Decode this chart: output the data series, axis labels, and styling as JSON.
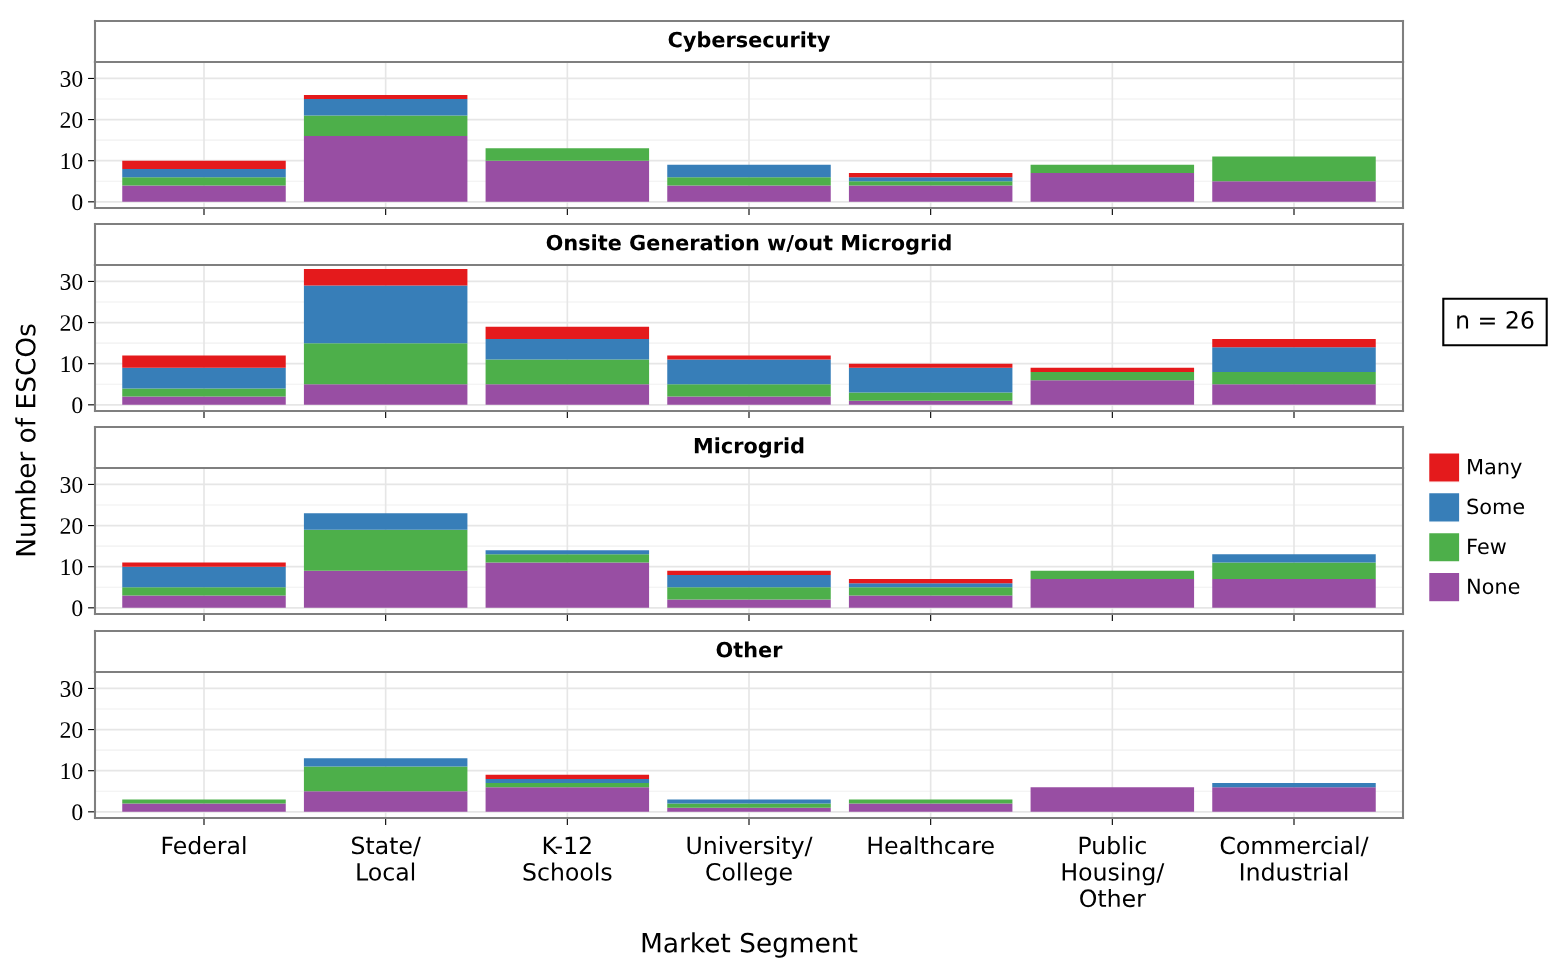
{
  "chart_data": [
    {
      "type": "bar",
      "title": "Cybersecurity",
      "stacked": true,
      "categories": [
        null,
        null,
        null,
        null,
        null,
        null,
        null
      ],
      "ylim": [
        -1.5,
        34
      ],
      "yticks": [
        0,
        10,
        20,
        30
      ],
      "grid": true,
      "tick_labels": "y",
      "series": [
        {
          "color": "#984ea3",
          "values": [
            4,
            16,
            10,
            4,
            4,
            7,
            5
          ]
        },
        {
          "color": "#4daf4a",
          "values": [
            2,
            5,
            3,
            2,
            1,
            2,
            6
          ]
        },
        {
          "color": "#377eb8",
          "values": [
            2,
            4,
            0,
            3,
            1,
            0,
            0
          ]
        },
        {
          "color": "#e41a1c",
          "values": [
            2,
            1,
            0,
            0,
            1,
            0,
            0
          ]
        }
      ]
    },
    {
      "type": "bar",
      "title": "Onsite Generation w/out Microgrid",
      "stacked": true,
      "categories": [
        null,
        null,
        null,
        null,
        null,
        null,
        null
      ],
      "ylim": [
        -1.5,
        34
      ],
      "yticks": [
        0,
        10,
        20,
        30
      ],
      "grid": true,
      "tick_labels": "y",
      "legend": "right",
      "annotations": [
        "n = 26"
      ],
      "series": [
        {
          "name": "None",
          "color": "#984ea3",
          "values": [
            2,
            5,
            5,
            2,
            1,
            6,
            5
          ]
        },
        {
          "name": "Few",
          "color": "#4daf4a",
          "values": [
            2,
            10,
            6,
            3,
            2,
            2,
            3
          ]
        },
        {
          "name": "Some",
          "color": "#377eb8",
          "values": [
            5,
            14,
            5,
            6,
            6,
            0,
            6
          ]
        },
        {
          "name": "Many",
          "color": "#e41a1c",
          "values": [
            3,
            4,
            3,
            1,
            1,
            1,
            2
          ]
        }
      ]
    },
    {
      "type": "bar",
      "title": "Microgrid",
      "stacked": true,
      "categories": [
        null,
        null,
        null,
        null,
        null,
        null,
        null
      ],
      "ylim": [
        -1.5,
        34
      ],
      "yticks": [
        0,
        10,
        20,
        30
      ],
      "grid": true,
      "tick_labels": "y",
      "series": [
        {
          "color": "#984ea3",
          "values": [
            3,
            9,
            11,
            2,
            3,
            7,
            7
          ]
        },
        {
          "color": "#4daf4a",
          "values": [
            2,
            10,
            2,
            3,
            2,
            2,
            4
          ]
        },
        {
          "color": "#377eb8",
          "values": [
            5,
            4,
            1,
            3,
            1,
            0,
            2
          ]
        },
        {
          "color": "#e41a1c",
          "values": [
            1,
            0,
            0,
            1,
            1,
            0,
            0
          ]
        }
      ]
    },
    {
      "type": "bar",
      "title": "Other",
      "stacked": true,
      "categories": [
        "Federal",
        "State/\nLocal",
        "K-12\nSchools",
        "University/\nCollege",
        "Healthcare",
        "Public\nHousing/\nOther",
        "Commercial/\nIndustrial"
      ],
      "ylim": [
        -1.5,
        34
      ],
      "yticks": [
        0,
        10,
        20,
        30
      ],
      "grid": true,
      "xlabel": "Market Segment",
      "ylabel": "Number of ESCOs",
      "series": [
        {
          "color": "#984ea3",
          "values": [
            2,
            5,
            6,
            1,
            2,
            6,
            6
          ]
        },
        {
          "color": "#4daf4a",
          "values": [
            1,
            6,
            1,
            1,
            1,
            0,
            0
          ]
        },
        {
          "color": "#377eb8",
          "values": [
            0,
            2,
            1,
            1,
            0,
            0,
            1
          ]
        },
        {
          "color": "#e41a1c",
          "values": [
            0,
            0,
            1,
            0,
            0,
            0,
            0
          ]
        }
      ]
    }
  ]
}
